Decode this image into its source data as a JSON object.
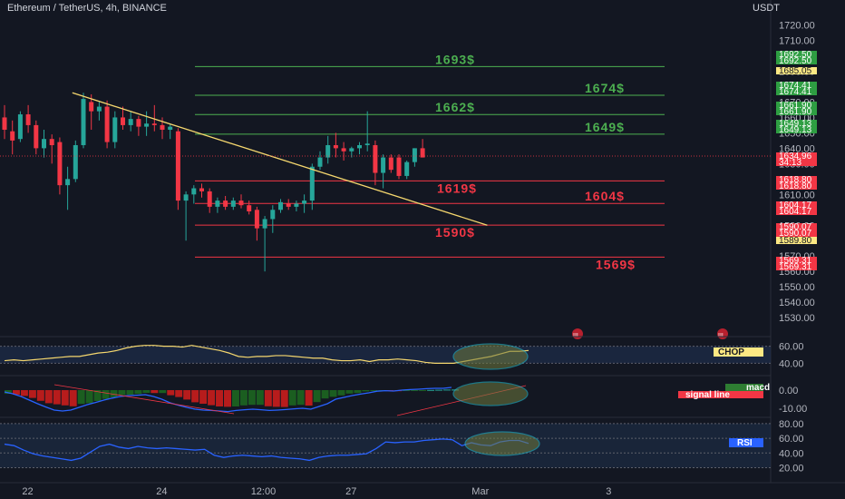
{
  "header": {
    "symbol": "Ethereum / TetherUS, 4h, BINANCE",
    "currency": "USDT"
  },
  "colors": {
    "background": "#131722",
    "bull": "#26a69a",
    "bear": "#f23645",
    "resistance": "#4caf50",
    "support": "#f23645",
    "trendline": "#f5d76e",
    "indicator_line": "#2962ff",
    "chop_line": "#f5d76e"
  },
  "chart_data": [
    {
      "type": "candlestick",
      "title": "Ethereum / TetherUS, 4h, BINANCE",
      "ylim": [
        1523,
        1728
      ],
      "price_axis_ticks": [
        1720,
        1710,
        1700,
        1690,
        1680,
        1670,
        1660,
        1650,
        1640,
        1630,
        1620,
        1610,
        1600,
        1590,
        1580,
        1570,
        1560,
        1550,
        1540,
        1530
      ],
      "price_axis_tick_labels": [
        "1720.00",
        "1710.00",
        "1700.00",
        "1690.00",
        "1680.00",
        "1670.00",
        "1660.00",
        "1650.00",
        "1640.00",
        "1630.00",
        "1620.00",
        "1610.00",
        "1600.00",
        "1590.00",
        "1580.00",
        "1570.00",
        "1560.00",
        "1550.00",
        "1540.00",
        "1530.00"
      ],
      "x_tick_labels": [
        "22",
        "24",
        "12:00",
        "27",
        "Mar",
        "3"
      ],
      "x_tick_index": [
        2,
        19,
        31,
        43,
        59,
        76
      ],
      "candles": [
        {
          "o": 1660,
          "h": 1668,
          "l": 1646,
          "c": 1652
        },
        {
          "o": 1651,
          "h": 1658,
          "l": 1636,
          "c": 1645
        },
        {
          "o": 1646,
          "h": 1664,
          "l": 1644,
          "c": 1662
        },
        {
          "o": 1662,
          "h": 1668,
          "l": 1650,
          "c": 1655
        },
        {
          "o": 1655,
          "h": 1658,
          "l": 1636,
          "c": 1640
        },
        {
          "o": 1640,
          "h": 1652,
          "l": 1634,
          "c": 1646
        },
        {
          "o": 1646,
          "h": 1649,
          "l": 1630,
          "c": 1642
        },
        {
          "o": 1644,
          "h": 1647,
          "l": 1610,
          "c": 1616
        },
        {
          "o": 1616,
          "h": 1628,
          "l": 1600,
          "c": 1620
        },
        {
          "o": 1620,
          "h": 1645,
          "l": 1618,
          "c": 1642
        },
        {
          "o": 1642,
          "h": 1676,
          "l": 1640,
          "c": 1672
        },
        {
          "o": 1670,
          "h": 1675,
          "l": 1652,
          "c": 1664
        },
        {
          "o": 1664,
          "h": 1670,
          "l": 1658,
          "c": 1667
        },
        {
          "o": 1667,
          "h": 1671,
          "l": 1640,
          "c": 1644
        },
        {
          "o": 1644,
          "h": 1664,
          "l": 1640,
          "c": 1660
        },
        {
          "o": 1660,
          "h": 1667,
          "l": 1652,
          "c": 1655
        },
        {
          "o": 1655,
          "h": 1664,
          "l": 1651,
          "c": 1659
        },
        {
          "o": 1659,
          "h": 1661,
          "l": 1648,
          "c": 1654
        },
        {
          "o": 1654,
          "h": 1664,
          "l": 1648,
          "c": 1656
        },
        {
          "o": 1656,
          "h": 1668,
          "l": 1651,
          "c": 1655
        },
        {
          "o": 1655,
          "h": 1660,
          "l": 1646,
          "c": 1652
        },
        {
          "o": 1652,
          "h": 1656,
          "l": 1646,
          "c": 1654
        },
        {
          "o": 1651,
          "h": 1653,
          "l": 1600,
          "c": 1606
        },
        {
          "o": 1606,
          "h": 1612,
          "l": 1580,
          "c": 1610
        },
        {
          "o": 1610,
          "h": 1616,
          "l": 1604,
          "c": 1614
        },
        {
          "o": 1614,
          "h": 1617,
          "l": 1608,
          "c": 1612
        },
        {
          "o": 1612,
          "h": 1614,
          "l": 1598,
          "c": 1602
        },
        {
          "o": 1602,
          "h": 1608,
          "l": 1598,
          "c": 1606
        },
        {
          "o": 1606,
          "h": 1609,
          "l": 1600,
          "c": 1602
        },
        {
          "o": 1602,
          "h": 1608,
          "l": 1600,
          "c": 1606
        },
        {
          "o": 1606,
          "h": 1610,
          "l": 1601,
          "c": 1603
        },
        {
          "o": 1603,
          "h": 1606,
          "l": 1597,
          "c": 1599
        },
        {
          "o": 1600,
          "h": 1602,
          "l": 1580,
          "c": 1588
        },
        {
          "o": 1588,
          "h": 1596,
          "l": 1560,
          "c": 1594
        },
        {
          "o": 1594,
          "h": 1603,
          "l": 1585,
          "c": 1600
        },
        {
          "o": 1600,
          "h": 1607,
          "l": 1598,
          "c": 1605
        },
        {
          "o": 1604,
          "h": 1607,
          "l": 1600,
          "c": 1602
        },
        {
          "o": 1602,
          "h": 1606,
          "l": 1599,
          "c": 1604
        },
        {
          "o": 1604,
          "h": 1610,
          "l": 1598,
          "c": 1606
        },
        {
          "o": 1606,
          "h": 1630,
          "l": 1600,
          "c": 1628
        },
        {
          "o": 1628,
          "h": 1638,
          "l": 1626,
          "c": 1634
        },
        {
          "o": 1634,
          "h": 1648,
          "l": 1630,
          "c": 1642
        },
        {
          "o": 1642,
          "h": 1650,
          "l": 1634,
          "c": 1640
        },
        {
          "o": 1640,
          "h": 1644,
          "l": 1632,
          "c": 1638
        },
        {
          "o": 1638,
          "h": 1641,
          "l": 1634,
          "c": 1640
        },
        {
          "o": 1640,
          "h": 1644,
          "l": 1636,
          "c": 1642
        },
        {
          "o": 1642,
          "h": 1664,
          "l": 1638,
          "c": 1643
        },
        {
          "o": 1642,
          "h": 1645,
          "l": 1616,
          "c": 1624
        },
        {
          "o": 1624,
          "h": 1636,
          "l": 1614,
          "c": 1634
        },
        {
          "o": 1634,
          "h": 1636,
          "l": 1624,
          "c": 1626
        },
        {
          "o": 1634,
          "h": 1636,
          "l": 1620,
          "c": 1622
        },
        {
          "o": 1622,
          "h": 1632,
          "l": 1620,
          "c": 1631
        },
        {
          "o": 1631,
          "h": 1640,
          "l": 1628,
          "c": 1640
        },
        {
          "o": 1640,
          "h": 1646,
          "l": 1634,
          "c": 1634
        }
      ],
      "horizontal_levels": [
        {
          "price": 1693,
          "label": "1693$",
          "kind": "resistance"
        },
        {
          "price": 1674.41,
          "label": "1674$",
          "kind": "resistance"
        },
        {
          "price": 1661.9,
          "label": "1662$",
          "kind": "resistance"
        },
        {
          "price": 1649.13,
          "label": "1649$",
          "kind": "resistance"
        },
        {
          "price": 1618.8,
          "label": "1619$",
          "kind": "support"
        },
        {
          "price": 1604.17,
          "label": "1604$",
          "kind": "support"
        },
        {
          "price": 1590.07,
          "label": "1590$",
          "kind": "support"
        },
        {
          "price": 1569.31,
          "label": "1569$",
          "kind": "support"
        }
      ],
      "price_tags": [
        {
          "price": 1692.5,
          "text": "1692.50",
          "kind": "green"
        },
        {
          "price": 1692.5,
          "text": "1692.50",
          "kind": "green"
        },
        {
          "price": 1685.05,
          "text": "1685.05",
          "kind": "yellow"
        },
        {
          "price": 1674.41,
          "text": "1674.41",
          "kind": "green"
        },
        {
          "price": 1674.41,
          "text": "1674.41",
          "kind": "green"
        },
        {
          "price": 1661.9,
          "text": "1661.90",
          "kind": "green"
        },
        {
          "price": 1661.9,
          "text": "1661.90",
          "kind": "green"
        },
        {
          "price": 1649.13,
          "text": "1649.13",
          "kind": "green"
        },
        {
          "price": 1649.13,
          "text": "1649.13",
          "kind": "green"
        },
        {
          "price": 1634.96,
          "text": "1634.96",
          "kind": "red"
        },
        {
          "price": 1631.5,
          "text": "34:13",
          "kind": "red"
        },
        {
          "price": 1618.8,
          "text": "1618.80",
          "kind": "red"
        },
        {
          "price": 1618.8,
          "text": "1618.80",
          "kind": "red"
        },
        {
          "price": 1604.17,
          "text": "1604.17",
          "kind": "red"
        },
        {
          "price": 1604.17,
          "text": "1604.17",
          "kind": "red"
        },
        {
          "price": 1590.07,
          "text": "1590.07",
          "kind": "red"
        },
        {
          "price": 1590.07,
          "text": "1590.07",
          "kind": "red"
        },
        {
          "price": 1589.8,
          "text": "1589.80",
          "kind": "yellow"
        },
        {
          "price": 1569.31,
          "text": "1569.31",
          "kind": "red"
        },
        {
          "price": 1569.31,
          "text": "1569.31",
          "kind": "red"
        }
      ],
      "trendline": {
        "from": {
          "index": 8.6,
          "price": 1676
        },
        "to": {
          "index": 61.2,
          "price": 1590
        }
      }
    },
    {
      "type": "line",
      "name": "CHOP",
      "ylim": [
        34,
        66
      ],
      "ticks": [
        60,
        40
      ],
      "tick_labels": [
        "60.00",
        "40.00"
      ],
      "values": [
        43,
        44,
        43,
        44,
        45,
        46,
        47,
        48,
        48,
        50,
        52,
        53,
        55,
        58,
        60,
        61,
        61,
        60,
        60,
        59,
        61,
        59,
        57,
        55,
        52,
        48,
        47,
        48,
        48,
        49,
        49,
        48,
        47,
        46,
        46,
        44,
        43,
        43,
        44,
        42,
        44,
        44,
        45,
        44,
        43,
        41,
        40,
        40,
        40,
        42,
        44,
        46,
        48,
        51,
        54,
        54,
        55
      ],
      "highlighted": true
    },
    {
      "type": "bar",
      "name": "macd",
      "legend": [
        "macd",
        "signal line"
      ],
      "ylim": [
        -14,
        4
      ],
      "ticks": [
        0,
        -10
      ],
      "tick_labels": [
        "0.00",
        "-10.00"
      ],
      "histogram": [
        -2,
        -2.5,
        -3.2,
        -4.3,
        -5.9,
        -7.2,
        -7.8,
        -8.4,
        -8.9,
        -7.6,
        -7.2,
        -6,
        -4.8,
        -3.9,
        -2.7,
        -2.5,
        -2.1,
        -1.5,
        -1.6,
        -1.6,
        -2.8,
        -3.8,
        -5.2,
        -6.7,
        -7.5,
        -8.3,
        -9,
        -9.2,
        -9,
        -8.4,
        -8.1,
        -8.1,
        -8.9,
        -9.2,
        -9.3,
        -8.4,
        -8.1,
        -8.5,
        -6.6,
        -4.6,
        -3.7,
        -2.9,
        -1.9,
        -1.6,
        -0.7,
        -0.3,
        -0.1,
        -0.5,
        -0.6,
        -0.3,
        -0.2,
        -0.1,
        0.1,
        0.2,
        0.3,
        0.3
      ],
      "macd_line": [
        -1,
        -2,
        -3.5,
        -5.5,
        -7.5,
        -9.3,
        -11,
        -11.5,
        -11,
        -9.5,
        -8,
        -6.8,
        -5.5,
        -4.4,
        -3.5,
        -3,
        -2.8,
        -2.5,
        -3.5,
        -5,
        -7,
        -8.3,
        -9.5,
        -10.5,
        -11,
        -11.2,
        -11.5,
        -11.8,
        -11.2,
        -10.8,
        -10.5,
        -10.8,
        -11.2,
        -11,
        -10.7,
        -10.3,
        -10,
        -10.5,
        -9,
        -7.5,
        -5,
        -4,
        -3,
        -2.2,
        -1.5,
        -0.6,
        -0.3,
        -0.5,
        0,
        0.3,
        0.5,
        0.8,
        1,
        1,
        1.5
      ],
      "highlighted": true
    },
    {
      "type": "line",
      "name": "RSI",
      "ylim": [
        12,
        86
      ],
      "ticks": [
        80,
        60,
        40,
        20
      ],
      "tick_labels": [
        "80.00",
        "60.00",
        "40.00",
        "20.00"
      ],
      "values": [
        52,
        50,
        44,
        39,
        36,
        34,
        32,
        30,
        33,
        41,
        49,
        52,
        48,
        46,
        49,
        47,
        46,
        47,
        46,
        45,
        44,
        45,
        37,
        34,
        36,
        37,
        36,
        35,
        36,
        34,
        33,
        32,
        30,
        34,
        36,
        37,
        37,
        38,
        39,
        46,
        55,
        54,
        55,
        55,
        57,
        58,
        59,
        58,
        50,
        54,
        51,
        50,
        55,
        57,
        57,
        53
      ],
      "highlighted": true
    }
  ]
}
